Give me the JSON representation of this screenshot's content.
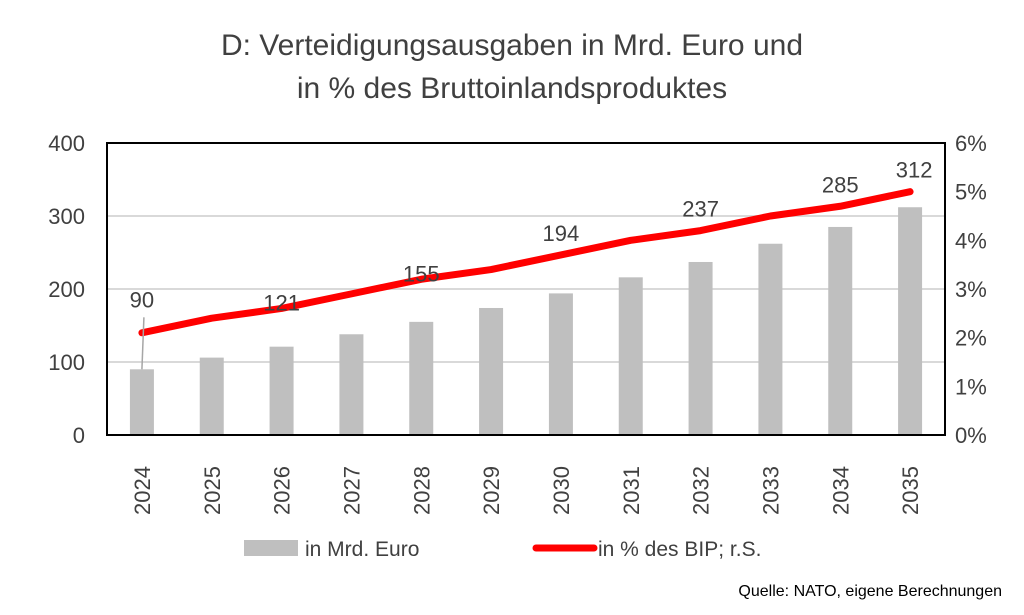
{
  "chart_data": {
    "type": "bar+line",
    "title": [
      "D: Verteidigungsausgaben in Mrd. Euro und",
      "in % des Bruttoinlandsproduktes"
    ],
    "categories": [
      "2024",
      "2025",
      "2026",
      "2027",
      "2028",
      "2029",
      "2030",
      "2031",
      "2032",
      "2033",
      "2034",
      "2035"
    ],
    "series": [
      {
        "name": "in Mrd. Euro",
        "type": "bar",
        "axis": "left",
        "color": "#bfbfbf",
        "values": [
          90,
          106,
          121,
          138,
          155,
          174,
          194,
          216,
          237,
          262,
          285,
          312
        ],
        "data_labels": {
          "0": "90",
          "2": "121",
          "4": "155",
          "6": "194",
          "8": "237",
          "10": "285",
          "11": "312"
        }
      },
      {
        "name": "in % des BIP; r.S.",
        "type": "line",
        "axis": "right",
        "color": "#ff0000",
        "values": [
          2.1,
          2.4,
          2.6,
          2.9,
          3.2,
          3.4,
          3.7,
          4.0,
          4.2,
          4.5,
          4.7,
          5.0
        ]
      }
    ],
    "y_left": {
      "range": [
        0,
        400
      ],
      "ticks": [
        "0",
        "100",
        "200",
        "300",
        "400"
      ]
    },
    "y_right": {
      "range": [
        0,
        6
      ],
      "ticks": [
        "0%",
        "1%",
        "2%",
        "3%",
        "4%",
        "5%",
        "6%"
      ]
    },
    "grid": true,
    "legend": "bottom"
  },
  "source": "Quelle: NATO, eigene Berechnungen"
}
